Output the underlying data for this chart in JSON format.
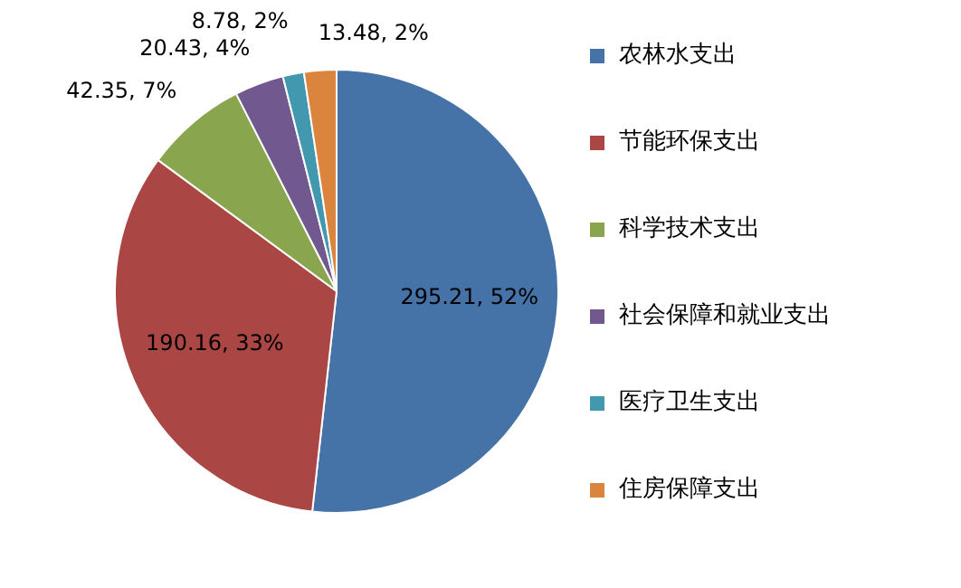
{
  "chart_data": {
    "type": "pie",
    "categories": [
      "农林水支出",
      "节能环保支出",
      "科学技术支出",
      "社会保障和就业支出",
      "医疗卫生支出",
      "住房保障支出"
    ],
    "values": [
      295.21,
      190.16,
      42.35,
      20.43,
      8.78,
      13.48
    ],
    "colors": [
      "#4572a7",
      "#aa4643",
      "#89a54e",
      "#71588f",
      "#4198af",
      "#db843d"
    ],
    "value_labels": [
      "295.21, 52%",
      "190.16, 33%",
      "42.35, 7%",
      "20.43, 4%",
      "8.78, 2%",
      "13.48, 2%"
    ],
    "legend": "right"
  }
}
